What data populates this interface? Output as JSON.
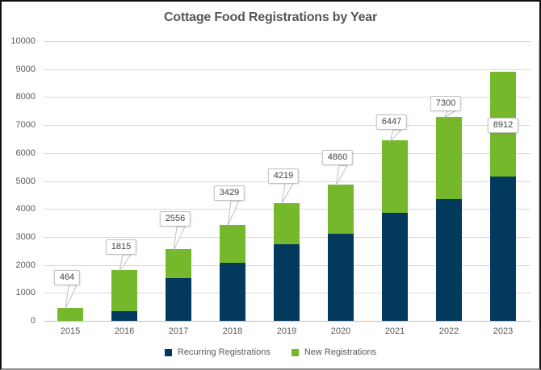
{
  "chart_data": {
    "type": "bar",
    "stacked": true,
    "title": "Cottage Food Registrations by Year",
    "categories": [
      "2015",
      "2016",
      "2017",
      "2018",
      "2019",
      "2020",
      "2021",
      "2022",
      "2023"
    ],
    "series": [
      {
        "name": "Recurring Registrations",
        "color": "#04395E",
        "values": [
          0,
          340,
          1520,
          2080,
          2740,
          3100,
          3860,
          4360,
          5160
        ]
      },
      {
        "name": "New Registrations",
        "color": "#76B82B",
        "values": [
          464,
          1475,
          1036,
          1349,
          1479,
          1760,
          2587,
          2940,
          3752
        ]
      }
    ],
    "totals": [
      464,
      1815,
      2556,
      3429,
      4219,
      4860,
      6447,
      7300,
      8912
    ],
    "data_labels": [
      "464",
      "1815",
      "2556",
      "3429",
      "4219",
      "4860",
      "6447",
      "7300",
      "8912"
    ],
    "xlabel": "",
    "ylabel": "",
    "ylim": [
      0,
      10000
    ],
    "ytick_step": 1000,
    "yticks": [
      "0",
      "1000",
      "2000",
      "3000",
      "4000",
      "5000",
      "6000",
      "7000",
      "8000",
      "9000",
      "10000"
    ],
    "grid": true,
    "legend_position": "bottom"
  },
  "colors": {
    "gridline": "#d9d9d9",
    "axis_line": "#bfbfbf",
    "title_text": "#565656",
    "tick_text": "#595959",
    "callout_border": "#bfbfbf",
    "callout_text": "#444444",
    "frame_border": "#111111",
    "background": "#ffffff"
  }
}
